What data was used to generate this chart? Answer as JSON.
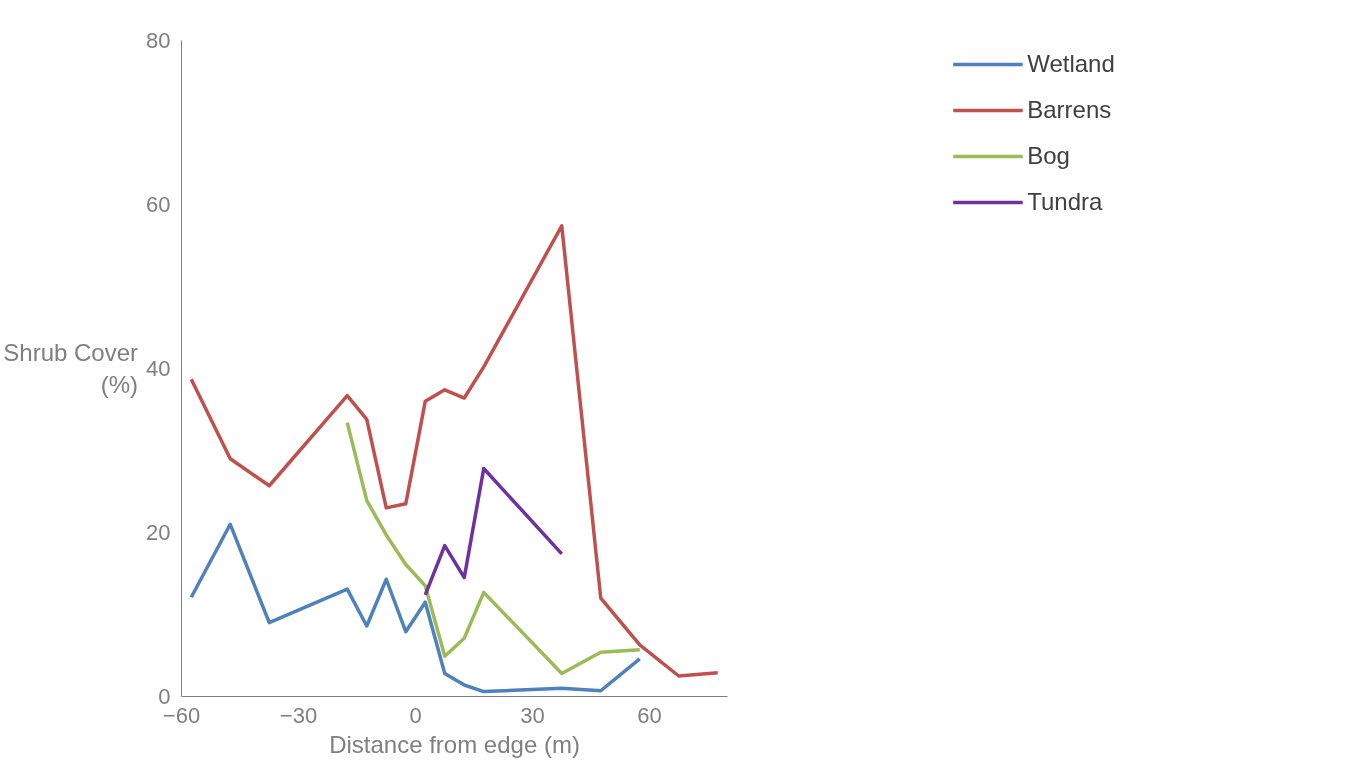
{
  "chart_data": {
    "type": "line",
    "xlabel": "Distance from edge (m)",
    "ylabel": "Shrub Cover\n(%)",
    "xlim": [
      -60,
      80
    ],
    "xticks": [
      -60,
      -30,
      0,
      30,
      60
    ],
    "ylim": [
      0,
      80
    ],
    "yticks": [
      0,
      20,
      40,
      60,
      80
    ],
    "grid": false,
    "legend": "top right",
    "marker": "none",
    "line_style": "solid",
    "series": [
      {
        "name": "Wetland",
        "color": "#4f81bd",
        "x": [
          -57.5,
          -47.5,
          -37.5,
          -17.5,
          -12.5,
          -7.5,
          -2.5,
          2.5,
          7.5,
          12.5,
          17.5,
          37.5,
          47.5,
          57.5
        ],
        "values": [
          12.1,
          21,
          9,
          13.1,
          8.6,
          14.3,
          7.9,
          11.5,
          2.8,
          1.4,
          0.6,
          1,
          0.7,
          4.6
        ]
      },
      {
        "name": "Barrens",
        "color": "#c0504d",
        "x": [
          -57.5,
          -47.5,
          -37.5,
          -17.5,
          -12.5,
          -7.5,
          -2.5,
          2.5,
          7.5,
          12.5,
          17.5,
          37.5,
          47.5,
          57.5,
          67.5,
          77.5
        ],
        "values": [
          38.7,
          29,
          25.7,
          36.7,
          33.8,
          23,
          23.5,
          36,
          37.4,
          36.4,
          40.2,
          57.4,
          12,
          6.3,
          2.5,
          2.9
        ]
      },
      {
        "name": "Bog",
        "color": "#9bbb59",
        "x": [
          -17.5,
          -12.5,
          -7.5,
          -2.5,
          2.5,
          7.5,
          12.5,
          17.5,
          37.5,
          47.5,
          57.5
        ],
        "values": [
          33.4,
          23.9,
          19.7,
          16.1,
          13.5,
          4.9,
          7.1,
          12.7,
          2.8,
          5.4,
          5.7
        ]
      },
      {
        "name": "Tundra",
        "color": "#7030a0",
        "x": [
          2.5,
          7.5,
          12.5,
          17.5,
          37.5
        ],
        "values": [
          12.4,
          18.4,
          14.5,
          27.8,
          17.4
        ]
      }
    ]
  }
}
